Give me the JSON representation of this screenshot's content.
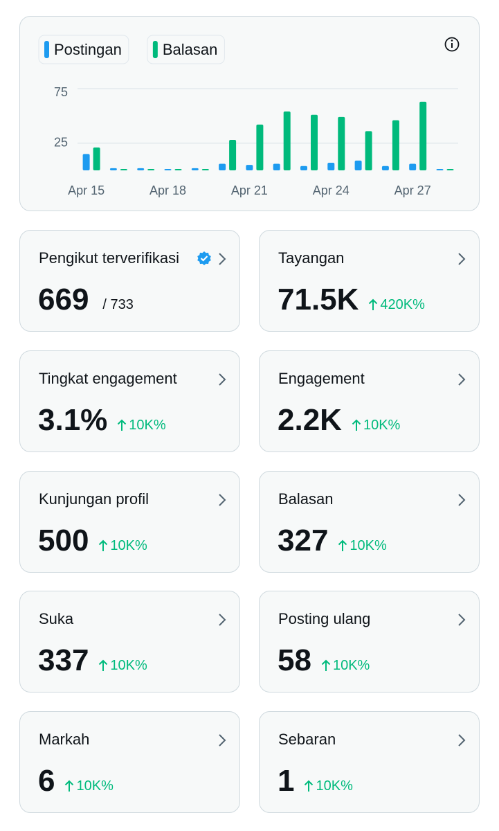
{
  "chart_data": {
    "type": "bar",
    "categories": [
      "Apr 15",
      null,
      null,
      "Apr 18",
      null,
      null,
      "Apr 21",
      null,
      null,
      "Apr 24",
      null,
      null,
      "Apr 27",
      null
    ],
    "series": [
      {
        "name": "Postingan",
        "color": "#1d9bf0",
        "values": [
          15,
          2,
          2,
          1,
          2,
          6,
          5,
          6,
          4,
          7,
          9,
          4,
          6,
          0
        ]
      },
      {
        "name": "Balasan",
        "color": "#00ba7c",
        "values": [
          21,
          0,
          0,
          0,
          0,
          28,
          42,
          54,
          51,
          49,
          36,
          46,
          63,
          1
        ]
      }
    ],
    "ylim": [
      0,
      75
    ],
    "yticks": [
      25,
      75
    ],
    "grid": true
  },
  "cards": [
    {
      "label": "Pengikut terverifikasi",
      "value": "669",
      "total": "/ 733"
    },
    {
      "label": "Tayangan",
      "value": "71.5K",
      "change": "420K%"
    },
    {
      "label": "Tingkat engagement",
      "value": "3.1%",
      "change": "10K%"
    },
    {
      "label": "Engagement",
      "value": "2.2K",
      "change": "10K%"
    },
    {
      "label": "Kunjungan profil",
      "value": "500",
      "change": "10K%"
    },
    {
      "label": "Balasan",
      "value": "327",
      "change": "10K%"
    },
    {
      "label": "Suka",
      "value": "337",
      "change": "10K%"
    },
    {
      "label": "Posting ulang",
      "value": "58",
      "change": "10K%"
    },
    {
      "label": "Markah",
      "value": "6",
      "change": "10K%"
    },
    {
      "label": "Sebaran",
      "value": "1",
      "change": "10K%"
    }
  ]
}
